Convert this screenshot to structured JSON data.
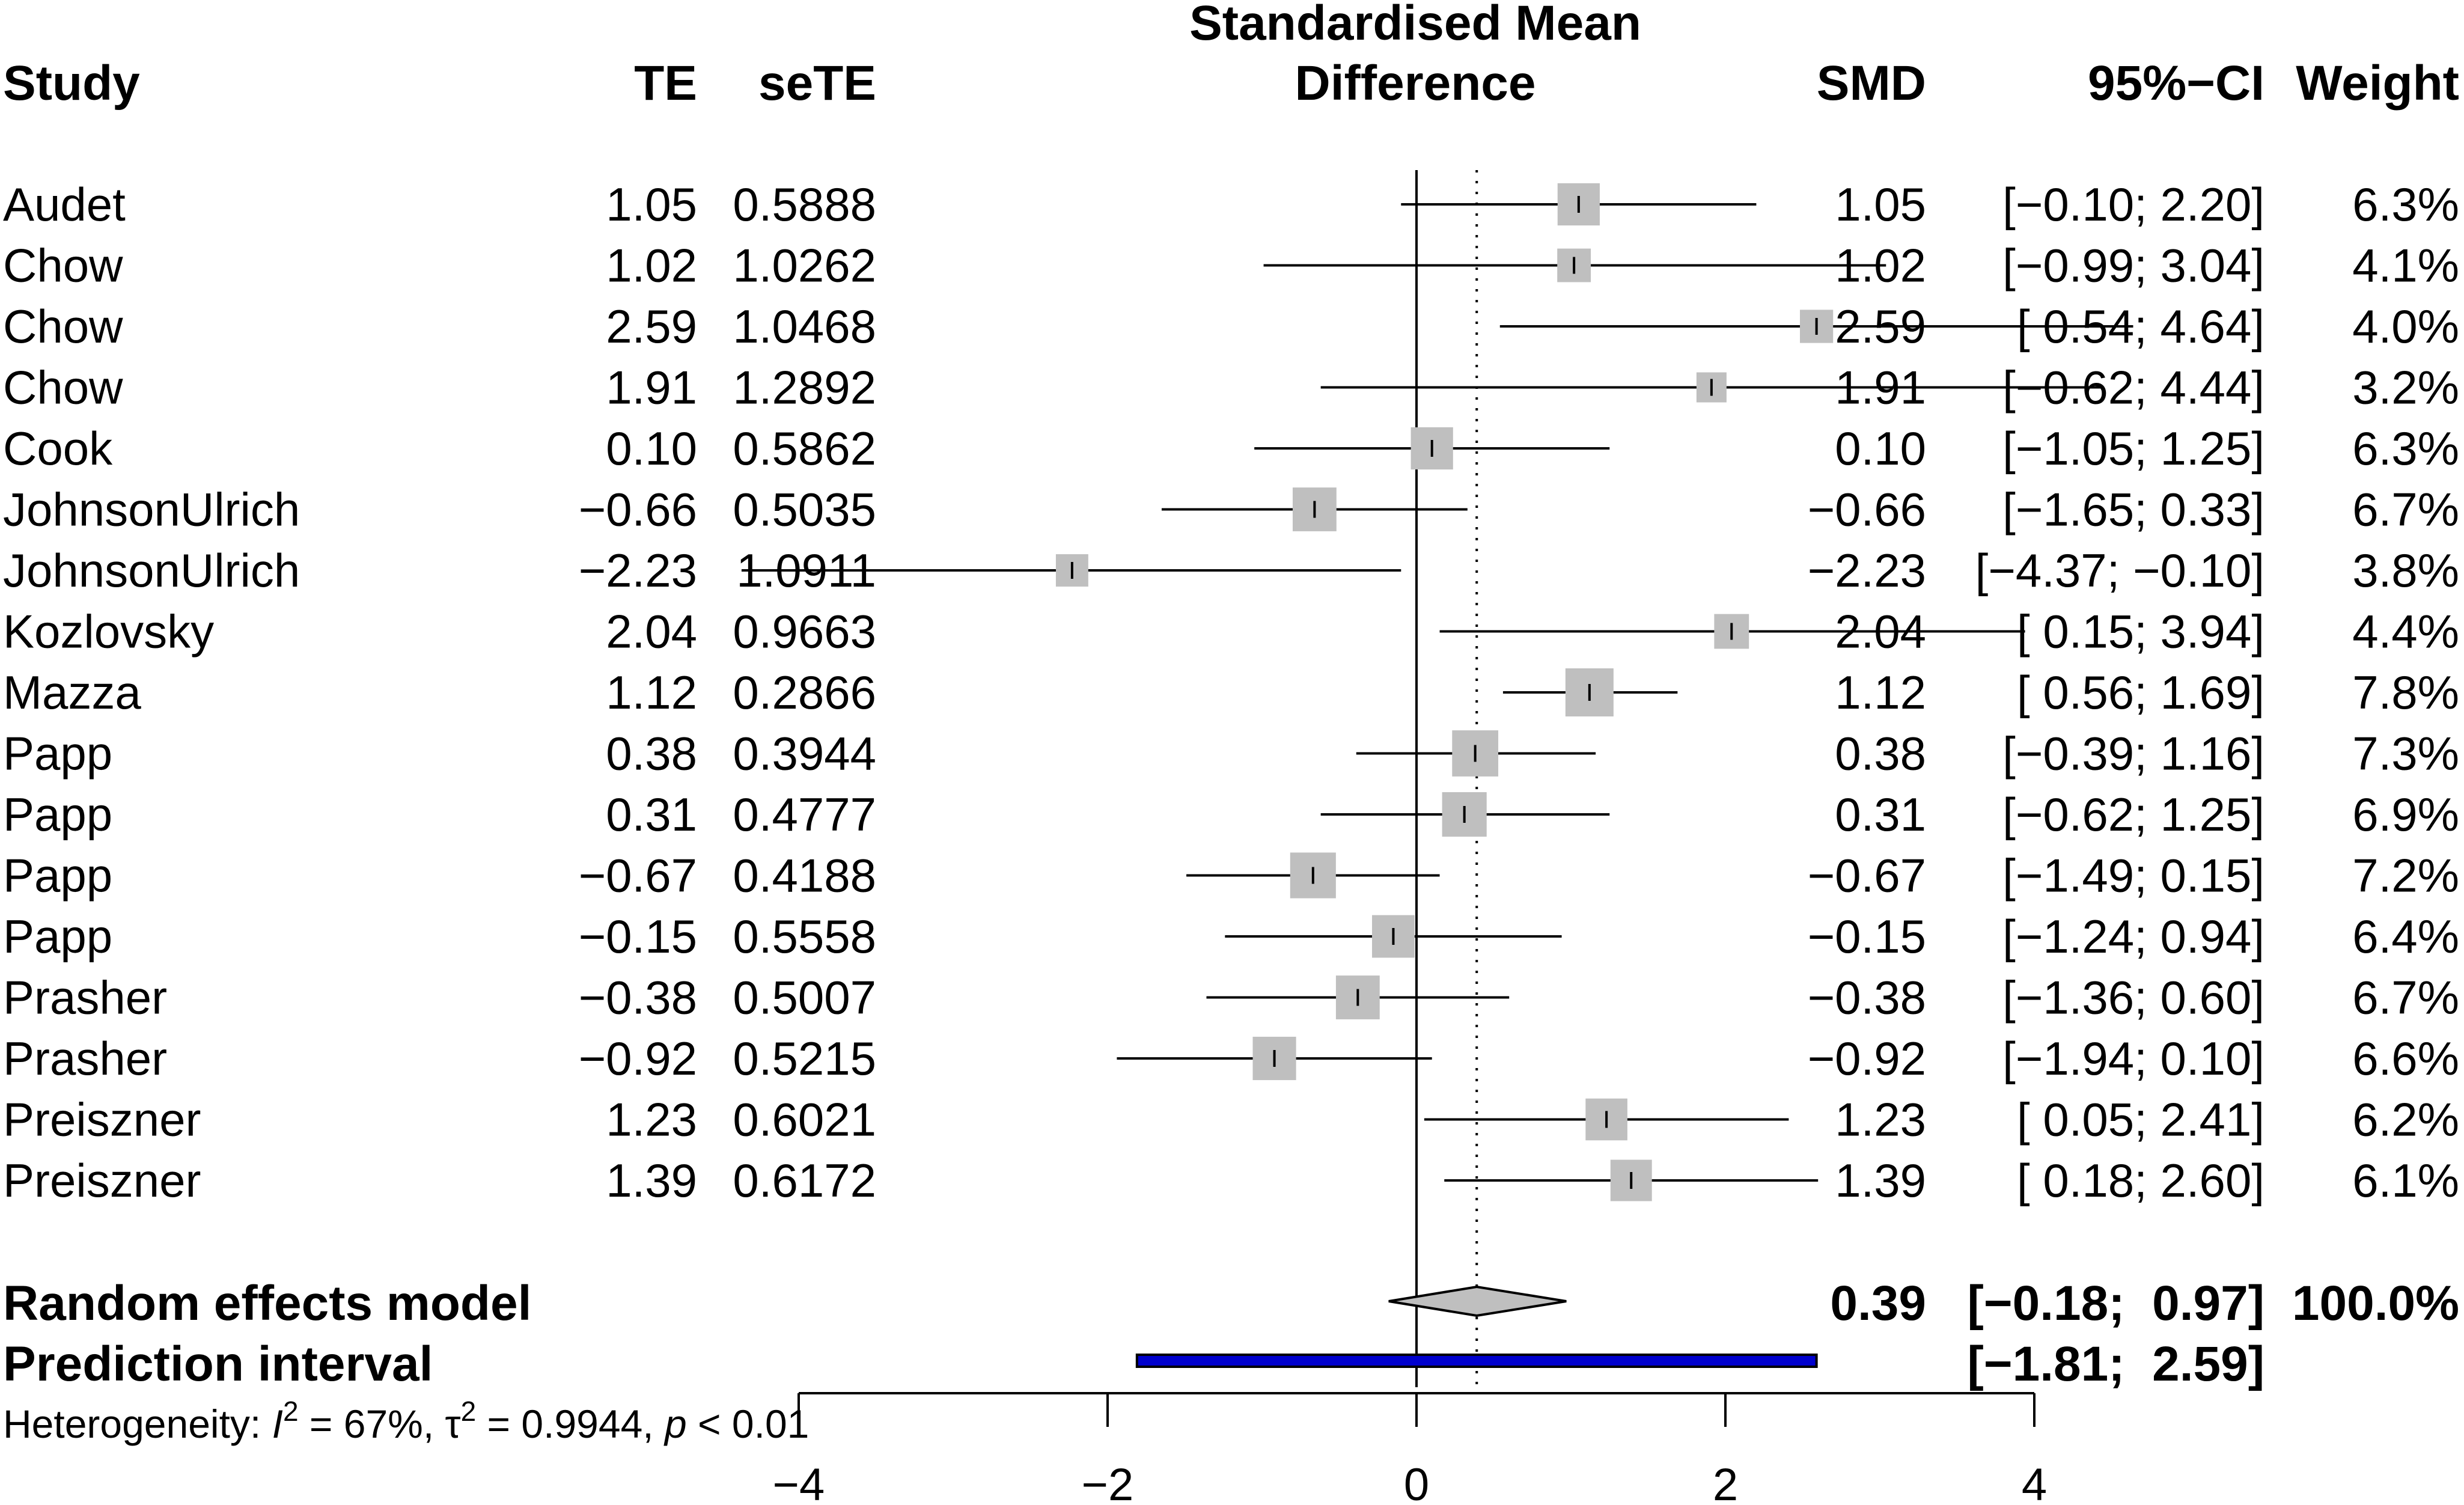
{
  "chart_data": {
    "type": "forest",
    "title": "Standardised Mean Difference",
    "title_lines": [
      "Standardised Mean",
      "Difference"
    ],
    "headers": {
      "study": "Study",
      "te": "TE",
      "sete": "seTE",
      "smd": "SMD",
      "ci": "95%−CI",
      "weight": "Weight"
    },
    "studies": [
      {
        "name": "Audet",
        "te": "1.05",
        "sete": "0.5888",
        "smd": "1.05",
        "ci": "[−0.10;  2.20]",
        "weight": "6.3%",
        "est": 1.05,
        "lo": -0.1,
        "hi": 2.2,
        "w": 6.3
      },
      {
        "name": "Chow",
        "te": "1.02",
        "sete": "1.0262",
        "smd": "1.02",
        "ci": "[−0.99;  3.04]",
        "weight": "4.1%",
        "est": 1.02,
        "lo": -0.99,
        "hi": 3.04,
        "w": 4.1
      },
      {
        "name": "Chow",
        "te": "2.59",
        "sete": "1.0468",
        "smd": "2.59",
        "ci": "[ 0.54;  4.64]",
        "weight": "4.0%",
        "est": 2.59,
        "lo": 0.54,
        "hi": 4.64,
        "w": 4.0
      },
      {
        "name": "Chow",
        "te": "1.91",
        "sete": "1.2892",
        "smd": "1.91",
        "ci": "[−0.62;  4.44]",
        "weight": "3.2%",
        "est": 1.91,
        "lo": -0.62,
        "hi": 4.44,
        "w": 3.2
      },
      {
        "name": "Cook",
        "te": "0.10",
        "sete": "0.5862",
        "smd": "0.10",
        "ci": "[−1.05;  1.25]",
        "weight": "6.3%",
        "est": 0.1,
        "lo": -1.05,
        "hi": 1.25,
        "w": 6.3
      },
      {
        "name": "JohnsonUlrich",
        "te": "−0.66",
        "sete": "0.5035",
        "smd": "−0.66",
        "ci": "[−1.65;  0.33]",
        "weight": "6.7%",
        "est": -0.66,
        "lo": -1.65,
        "hi": 0.33,
        "w": 6.7
      },
      {
        "name": "JohnsonUlrich",
        "te": "−2.23",
        "sete": "1.0911",
        "smd": "−2.23",
        "ci": "[−4.37; −0.10]",
        "weight": "3.8%",
        "est": -2.23,
        "lo": -4.37,
        "hi": -0.1,
        "w": 3.8
      },
      {
        "name": "Kozlovsky",
        "te": "2.04",
        "sete": "0.9663",
        "smd": "2.04",
        "ci": "[ 0.15;  3.94]",
        "weight": "4.4%",
        "est": 2.04,
        "lo": 0.15,
        "hi": 3.94,
        "w": 4.4
      },
      {
        "name": "Mazza",
        "te": "1.12",
        "sete": "0.2866",
        "smd": "1.12",
        "ci": "[ 0.56;  1.69]",
        "weight": "7.8%",
        "est": 1.12,
        "lo": 0.56,
        "hi": 1.69,
        "w": 7.8
      },
      {
        "name": "Papp",
        "te": "0.38",
        "sete": "0.3944",
        "smd": "0.38",
        "ci": "[−0.39;  1.16]",
        "weight": "7.3%",
        "est": 0.38,
        "lo": -0.39,
        "hi": 1.16,
        "w": 7.3
      },
      {
        "name": "Papp",
        "te": "0.31",
        "sete": "0.4777",
        "smd": "0.31",
        "ci": "[−0.62;  1.25]",
        "weight": "6.9%",
        "est": 0.31,
        "lo": -0.62,
        "hi": 1.25,
        "w": 6.9
      },
      {
        "name": "Papp",
        "te": "−0.67",
        "sete": "0.4188",
        "smd": "−0.67",
        "ci": "[−1.49;  0.15]",
        "weight": "7.2%",
        "est": -0.67,
        "lo": -1.49,
        "hi": 0.15,
        "w": 7.2
      },
      {
        "name": "Papp",
        "te": "−0.15",
        "sete": "0.5558",
        "smd": "−0.15",
        "ci": "[−1.24;  0.94]",
        "weight": "6.4%",
        "est": -0.15,
        "lo": -1.24,
        "hi": 0.94,
        "w": 6.4
      },
      {
        "name": "Prasher",
        "te": "−0.38",
        "sete": "0.5007",
        "smd": "−0.38",
        "ci": "[−1.36;  0.60]",
        "weight": "6.7%",
        "est": -0.38,
        "lo": -1.36,
        "hi": 0.6,
        "w": 6.7
      },
      {
        "name": "Prasher",
        "te": "−0.92",
        "sete": "0.5215",
        "smd": "−0.92",
        "ci": "[−1.94;  0.10]",
        "weight": "6.6%",
        "est": -0.92,
        "lo": -1.94,
        "hi": 0.1,
        "w": 6.6
      },
      {
        "name": "Preiszner",
        "te": "1.23",
        "sete": "0.6021",
        "smd": "1.23",
        "ci": "[ 0.05;  2.41]",
        "weight": "6.2%",
        "est": 1.23,
        "lo": 0.05,
        "hi": 2.41,
        "w": 6.2
      },
      {
        "name": "Preiszner",
        "te": "1.39",
        "sete": "0.6172",
        "smd": "1.39",
        "ci": "[ 0.18;  2.60]",
        "weight": "6.1%",
        "est": 1.39,
        "lo": 0.18,
        "hi": 2.6,
        "w": 6.1
      }
    ],
    "random_effects": {
      "label": "Random effects model",
      "smd": "0.39",
      "ci": "[−0.18;  0.97]",
      "weight": "100.0%",
      "est": 0.39,
      "lo": -0.18,
      "hi": 0.97
    },
    "prediction_interval": {
      "label": "Prediction interval",
      "ci": "[−1.81;  2.59]",
      "lo": -1.81,
      "hi": 2.59
    },
    "heterogeneity": {
      "prefix": "Heterogeneity: ",
      "i2_symbol": "I",
      "i2": " = 67%, ",
      "tau_symbol": "τ",
      "tau2": " = 0.9944, ",
      "p_symbol": "p",
      "p": " < 0.01",
      "superscript": "2"
    },
    "xaxis": {
      "range": [
        -4,
        4
      ],
      "ticks": [
        -4,
        -2,
        0,
        2,
        4
      ],
      "tick_labels": [
        "−4",
        "−2",
        "0",
        "2",
        "4"
      ]
    },
    "colors": {
      "square": "#bfbfbf",
      "diamond": "#bfbfbf",
      "prediction": "#0000cd",
      "line": "#000000"
    }
  }
}
